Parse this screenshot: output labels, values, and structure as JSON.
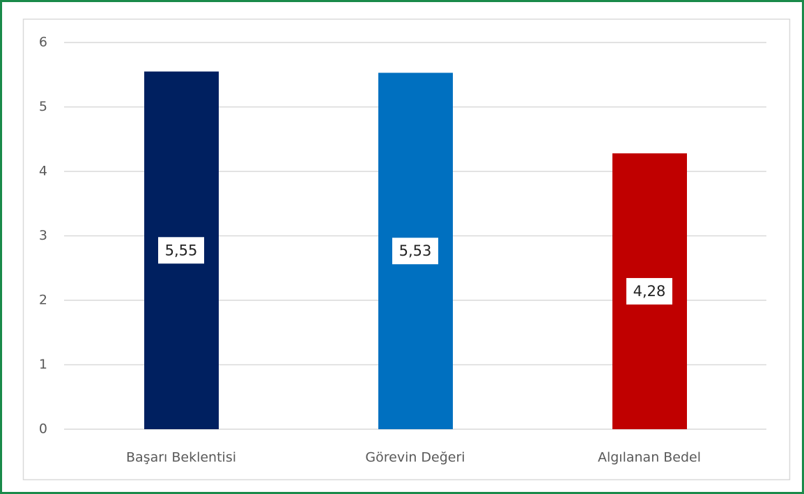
{
  "chart_data": {
    "type": "bar",
    "categories": [
      "Başarı Beklentisi",
      "Görevin Değeri",
      "Algılanan Bedel"
    ],
    "values": [
      5.55,
      5.53,
      4.28
    ],
    "value_labels": [
      "5,55",
      "5,53",
      "4,28"
    ],
    "colors": [
      "#002060",
      "#0070c0",
      "#c00000"
    ],
    "ylim": [
      0,
      6
    ],
    "yticks": [
      0,
      1,
      2,
      3,
      4,
      5,
      6
    ],
    "grid": true
  }
}
